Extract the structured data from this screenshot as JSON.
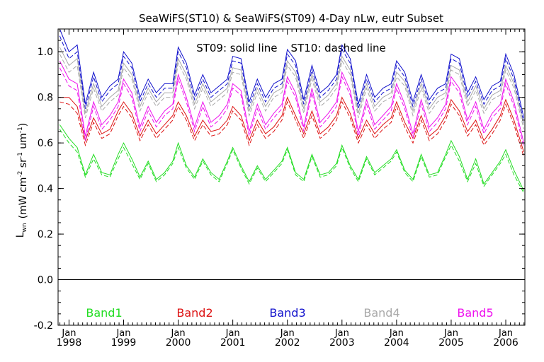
{
  "chart_data": {
    "type": "line",
    "title": "SeaWiFS(ST10) & SeaWiFS(ST09) 4-Day nLw, eutr Subset",
    "annotation": "ST09: solid line    ST10: dashed line",
    "ylabel_main": "L",
    "ylabel_sub": "wn",
    "ylabel_units": "(mW cm",
    "ylabel_units_parts": [
      "(mW cm",
      "-2",
      " sr",
      "-1",
      " um",
      "-1",
      ")"
    ],
    "ylim": [
      -0.2,
      1.1
    ],
    "yticks": [
      -0.2,
      0.0,
      0.2,
      0.4,
      0.6,
      0.8,
      1.0
    ],
    "ytick_labels": [
      "-0.2",
      "0.0",
      "0.2",
      "0.4",
      "0.6",
      "0.8",
      "1.0"
    ],
    "xlim": [
      1997.8,
      2006.35
    ],
    "xticks": [
      {
        "x": 1998.0,
        "month": "Jan",
        "year": "1998"
      },
      {
        "x": 1999.0,
        "month": "Jan",
        "year": "1999"
      },
      {
        "x": 2000.0,
        "month": "Jan",
        "year": "2000"
      },
      {
        "x": 2001.0,
        "month": "Jan",
        "year": "2001"
      },
      {
        "x": 2002.0,
        "month": "Jan",
        "year": "2002"
      },
      {
        "x": 2003.0,
        "month": "Jan",
        "year": "2003"
      },
      {
        "x": 2004.0,
        "month": "Jan",
        "year": "2004"
      },
      {
        "x": 2005.0,
        "month": "Jan",
        "year": "2005"
      },
      {
        "x": 2006.0,
        "month": "Jan",
        "year": "2006"
      }
    ],
    "reference_line": 0.0,
    "grid": false,
    "legend_placement": "bottom",
    "colors": {
      "Band1": "#22dd22",
      "Band2": "#dd1111",
      "Band3": "#1111cc",
      "Band4": "#a8a8a8",
      "Band5": "#ee11ee"
    },
    "series": [
      {
        "name": "Band1",
        "x": [
          1997.83,
          1998.0,
          1998.15,
          1998.3,
          1998.45,
          1998.6,
          1998.75,
          1998.9,
          1999.0,
          1999.15,
          1999.3,
          1999.45,
          1999.6,
          1999.75,
          1999.9,
          2000.0,
          2000.15,
          2000.3,
          2000.45,
          2000.6,
          2000.75,
          2000.9,
          2001.0,
          2001.15,
          2001.3,
          2001.45,
          2001.6,
          2001.75,
          2001.9,
          2002.0,
          2002.15,
          2002.3,
          2002.45,
          2002.6,
          2002.75,
          2002.9,
          2003.0,
          2003.15,
          2003.3,
          2003.45,
          2003.6,
          2003.75,
          2003.9,
          2004.0,
          2004.15,
          2004.3,
          2004.45,
          2004.6,
          2004.75,
          2004.9,
          2005.0,
          2005.15,
          2005.3,
          2005.45,
          2005.6,
          2005.75,
          2005.9,
          2006.0,
          2006.15,
          2006.33
        ],
        "solid": [
          0.68,
          0.62,
          0.58,
          0.46,
          0.55,
          0.47,
          0.46,
          0.55,
          0.6,
          0.53,
          0.45,
          0.52,
          0.44,
          0.47,
          0.52,
          0.6,
          0.5,
          0.45,
          0.53,
          0.47,
          0.44,
          0.52,
          0.58,
          0.5,
          0.43,
          0.5,
          0.44,
          0.48,
          0.52,
          0.58,
          0.47,
          0.44,
          0.55,
          0.46,
          0.47,
          0.51,
          0.59,
          0.5,
          0.44,
          0.54,
          0.47,
          0.5,
          0.53,
          0.57,
          0.48,
          0.44,
          0.55,
          0.46,
          0.47,
          0.55,
          0.61,
          0.54,
          0.44,
          0.53,
          0.42,
          0.47,
          0.52,
          0.57,
          0.48,
          0.39
        ],
        "dashed": [
          0.66,
          0.6,
          0.56,
          0.45,
          0.53,
          0.46,
          0.45,
          0.53,
          0.58,
          0.51,
          0.44,
          0.51,
          0.43,
          0.46,
          0.51,
          0.58,
          0.49,
          0.44,
          0.52,
          0.46,
          0.43,
          0.51,
          0.57,
          0.49,
          0.42,
          0.49,
          0.43,
          0.47,
          0.51,
          0.57,
          0.46,
          0.43,
          0.54,
          0.45,
          0.46,
          0.5,
          0.58,
          0.49,
          0.43,
          0.53,
          0.46,
          0.49,
          0.52,
          0.56,
          0.47,
          0.43,
          0.54,
          0.45,
          0.46,
          0.54,
          0.59,
          0.52,
          0.43,
          0.51,
          0.41,
          0.46,
          0.51,
          0.55,
          0.46,
          0.38
        ]
      },
      {
        "name": "Band2",
        "x": [
          1997.83,
          1998.0,
          1998.15,
          1998.3,
          1998.45,
          1998.6,
          1998.75,
          1998.9,
          1999.0,
          1999.15,
          1999.3,
          1999.45,
          1999.6,
          1999.75,
          1999.9,
          2000.0,
          2000.15,
          2000.3,
          2000.45,
          2000.6,
          2000.75,
          2000.9,
          2001.0,
          2001.15,
          2001.3,
          2001.45,
          2001.6,
          2001.75,
          2001.9,
          2002.0,
          2002.15,
          2002.3,
          2002.45,
          2002.6,
          2002.75,
          2002.9,
          2003.0,
          2003.15,
          2003.3,
          2003.45,
          2003.6,
          2003.75,
          2003.9,
          2004.0,
          2004.15,
          2004.3,
          2004.45,
          2004.6,
          2004.75,
          2004.9,
          2005.0,
          2005.15,
          2005.3,
          2005.45,
          2005.6,
          2005.75,
          2005.9,
          2006.0,
          2006.15,
          2006.33
        ],
        "solid": [
          0.8,
          0.8,
          0.76,
          0.61,
          0.71,
          0.64,
          0.66,
          0.74,
          0.78,
          0.73,
          0.63,
          0.7,
          0.64,
          0.68,
          0.72,
          0.78,
          0.72,
          0.63,
          0.7,
          0.65,
          0.66,
          0.7,
          0.76,
          0.72,
          0.61,
          0.7,
          0.64,
          0.67,
          0.72,
          0.8,
          0.72,
          0.64,
          0.74,
          0.64,
          0.67,
          0.72,
          0.8,
          0.73,
          0.62,
          0.7,
          0.64,
          0.68,
          0.71,
          0.78,
          0.69,
          0.62,
          0.72,
          0.63,
          0.66,
          0.72,
          0.79,
          0.74,
          0.65,
          0.7,
          0.61,
          0.66,
          0.72,
          0.79,
          0.7,
          0.56
        ],
        "dashed": [
          0.78,
          0.77,
          0.73,
          0.59,
          0.69,
          0.62,
          0.64,
          0.72,
          0.76,
          0.71,
          0.61,
          0.68,
          0.62,
          0.66,
          0.7,
          0.76,
          0.7,
          0.61,
          0.68,
          0.63,
          0.64,
          0.68,
          0.74,
          0.7,
          0.59,
          0.68,
          0.62,
          0.65,
          0.7,
          0.78,
          0.7,
          0.62,
          0.72,
          0.62,
          0.65,
          0.7,
          0.78,
          0.71,
          0.6,
          0.68,
          0.62,
          0.66,
          0.69,
          0.76,
          0.67,
          0.6,
          0.7,
          0.61,
          0.64,
          0.7,
          0.77,
          0.72,
          0.63,
          0.68,
          0.59,
          0.64,
          0.7,
          0.77,
          0.68,
          0.54
        ]
      },
      {
        "name": "Band3",
        "x": [
          1997.83,
          1998.0,
          1998.15,
          1998.3,
          1998.45,
          1998.6,
          1998.75,
          1998.9,
          1999.0,
          1999.15,
          1999.3,
          1999.45,
          1999.6,
          1999.75,
          1999.9,
          2000.0,
          2000.15,
          2000.3,
          2000.45,
          2000.6,
          2000.75,
          2000.9,
          2001.0,
          2001.15,
          2001.3,
          2001.45,
          2001.6,
          2001.75,
          2001.9,
          2002.0,
          2002.15,
          2002.3,
          2002.45,
          2002.6,
          2002.75,
          2002.9,
          2003.0,
          2003.15,
          2003.3,
          2003.45,
          2003.6,
          2003.75,
          2003.9,
          2004.0,
          2004.15,
          2004.3,
          2004.45,
          2004.6,
          2004.75,
          2004.9,
          2005.0,
          2005.15,
          2005.3,
          2005.45,
          2005.6,
          2005.75,
          2005.9,
          2006.0,
          2006.15,
          2006.33
        ],
        "solid": [
          1.1,
          1.0,
          1.03,
          0.77,
          0.91,
          0.8,
          0.85,
          0.88,
          1.0,
          0.95,
          0.8,
          0.88,
          0.82,
          0.86,
          0.86,
          1.02,
          0.95,
          0.81,
          0.9,
          0.82,
          0.85,
          0.88,
          0.98,
          0.97,
          0.78,
          0.88,
          0.8,
          0.86,
          0.88,
          1.01,
          0.96,
          0.79,
          0.94,
          0.82,
          0.85,
          0.9,
          1.03,
          0.97,
          0.77,
          0.9,
          0.8,
          0.84,
          0.86,
          0.96,
          0.91,
          0.78,
          0.9,
          0.79,
          0.84,
          0.86,
          0.99,
          0.97,
          0.82,
          0.89,
          0.79,
          0.85,
          0.87,
          0.99,
          0.9,
          0.71
        ],
        "dashed": [
          1.07,
          0.97,
          1.0,
          0.75,
          0.89,
          0.78,
          0.83,
          0.86,
          0.98,
          0.93,
          0.78,
          0.86,
          0.8,
          0.84,
          0.84,
          1.0,
          0.93,
          0.79,
          0.88,
          0.8,
          0.83,
          0.86,
          0.96,
          0.95,
          0.76,
          0.86,
          0.78,
          0.84,
          0.86,
          0.99,
          0.94,
          0.77,
          0.92,
          0.8,
          0.83,
          0.88,
          1.01,
          0.95,
          0.75,
          0.88,
          0.78,
          0.82,
          0.84,
          0.94,
          0.89,
          0.76,
          0.88,
          0.77,
          0.82,
          0.84,
          0.97,
          0.95,
          0.8,
          0.87,
          0.77,
          0.83,
          0.85,
          0.97,
          0.88,
          0.69
        ]
      },
      {
        "name": "Band4",
        "x": [
          1997.83,
          1998.0,
          1998.15,
          1998.3,
          1998.45,
          1998.6,
          1998.75,
          1998.9,
          1999.0,
          1999.15,
          1999.3,
          1999.45,
          1999.6,
          1999.75,
          1999.9,
          2000.0,
          2000.15,
          2000.3,
          2000.45,
          2000.6,
          2000.75,
          2000.9,
          2001.0,
          2001.15,
          2001.3,
          2001.45,
          2001.6,
          2001.75,
          2001.9,
          2002.0,
          2002.15,
          2002.3,
          2002.45,
          2002.6,
          2002.75,
          2002.9,
          2003.0,
          2003.15,
          2003.3,
          2003.45,
          2003.6,
          2003.75,
          2003.9,
          2004.0,
          2004.15,
          2004.3,
          2004.45,
          2004.6,
          2004.75,
          2004.9,
          2005.0,
          2005.15,
          2005.3,
          2005.45,
          2005.6,
          2005.75,
          2005.9,
          2006.0,
          2006.15,
          2006.33
        ],
        "solid": [
          1.02,
          0.94,
          0.97,
          0.73,
          0.86,
          0.76,
          0.8,
          0.83,
          0.95,
          0.9,
          0.76,
          0.84,
          0.78,
          0.82,
          0.82,
          0.97,
          0.9,
          0.77,
          0.86,
          0.78,
          0.81,
          0.84,
          0.93,
          0.92,
          0.74,
          0.84,
          0.76,
          0.82,
          0.84,
          0.96,
          0.91,
          0.75,
          0.9,
          0.78,
          0.81,
          0.86,
          0.98,
          0.92,
          0.73,
          0.86,
          0.76,
          0.8,
          0.82,
          0.91,
          0.87,
          0.74,
          0.86,
          0.75,
          0.8,
          0.82,
          0.94,
          0.92,
          0.78,
          0.85,
          0.75,
          0.81,
          0.83,
          0.94,
          0.86,
          0.68
        ],
        "dashed": [
          0.99,
          0.91,
          0.94,
          0.71,
          0.84,
          0.74,
          0.78,
          0.81,
          0.93,
          0.88,
          0.74,
          0.82,
          0.76,
          0.8,
          0.8,
          0.95,
          0.88,
          0.75,
          0.84,
          0.76,
          0.79,
          0.82,
          0.91,
          0.9,
          0.72,
          0.82,
          0.74,
          0.8,
          0.82,
          0.94,
          0.89,
          0.73,
          0.88,
          0.76,
          0.79,
          0.84,
          0.96,
          0.9,
          0.71,
          0.84,
          0.74,
          0.78,
          0.8,
          0.89,
          0.85,
          0.72,
          0.84,
          0.73,
          0.78,
          0.8,
          0.92,
          0.9,
          0.76,
          0.83,
          0.73,
          0.79,
          0.81,
          0.92,
          0.84,
          0.66
        ]
      },
      {
        "name": "Band5",
        "x": [
          1997.83,
          1998.0,
          1998.15,
          1998.3,
          1998.45,
          1998.6,
          1998.75,
          1998.9,
          1999.0,
          1999.15,
          1999.3,
          1999.45,
          1999.6,
          1999.75,
          1999.9,
          2000.0,
          2000.15,
          2000.3,
          2000.45,
          2000.6,
          2000.75,
          2000.9,
          2001.0,
          2001.15,
          2001.3,
          2001.45,
          2001.6,
          2001.75,
          2001.9,
          2002.0,
          2002.15,
          2002.3,
          2002.45,
          2002.6,
          2002.75,
          2002.9,
          2003.0,
          2003.15,
          2003.3,
          2003.45,
          2003.6,
          2003.75,
          2003.9,
          2004.0,
          2004.15,
          2004.3,
          2004.45,
          2004.6,
          2004.75,
          2004.9,
          2005.0,
          2005.15,
          2005.3,
          2005.45,
          2005.6,
          2005.75,
          2005.9,
          2006.0,
          2006.15,
          2006.33
        ],
        "solid": [
          0.96,
          0.88,
          0.86,
          0.63,
          0.78,
          0.68,
          0.72,
          0.78,
          0.88,
          0.82,
          0.67,
          0.76,
          0.69,
          0.74,
          0.77,
          0.9,
          0.8,
          0.67,
          0.78,
          0.69,
          0.72,
          0.77,
          0.86,
          0.83,
          0.65,
          0.77,
          0.68,
          0.73,
          0.77,
          0.89,
          0.82,
          0.67,
          0.84,
          0.69,
          0.73,
          0.78,
          0.91,
          0.83,
          0.65,
          0.79,
          0.68,
          0.72,
          0.76,
          0.86,
          0.77,
          0.64,
          0.79,
          0.67,
          0.71,
          0.77,
          0.89,
          0.84,
          0.7,
          0.78,
          0.66,
          0.73,
          0.77,
          0.88,
          0.78,
          0.6
        ],
        "dashed": [
          0.93,
          0.85,
          0.83,
          0.61,
          0.76,
          0.66,
          0.7,
          0.76,
          0.86,
          0.8,
          0.65,
          0.74,
          0.67,
          0.72,
          0.75,
          0.88,
          0.78,
          0.65,
          0.76,
          0.67,
          0.7,
          0.75,
          0.84,
          0.81,
          0.63,
          0.75,
          0.66,
          0.71,
          0.75,
          0.87,
          0.8,
          0.65,
          0.82,
          0.67,
          0.71,
          0.76,
          0.89,
          0.81,
          0.63,
          0.77,
          0.66,
          0.7,
          0.74,
          0.84,
          0.75,
          0.62,
          0.77,
          0.65,
          0.69,
          0.75,
          0.87,
          0.82,
          0.68,
          0.76,
          0.64,
          0.71,
          0.75,
          0.86,
          0.76,
          0.58
        ]
      }
    ]
  }
}
